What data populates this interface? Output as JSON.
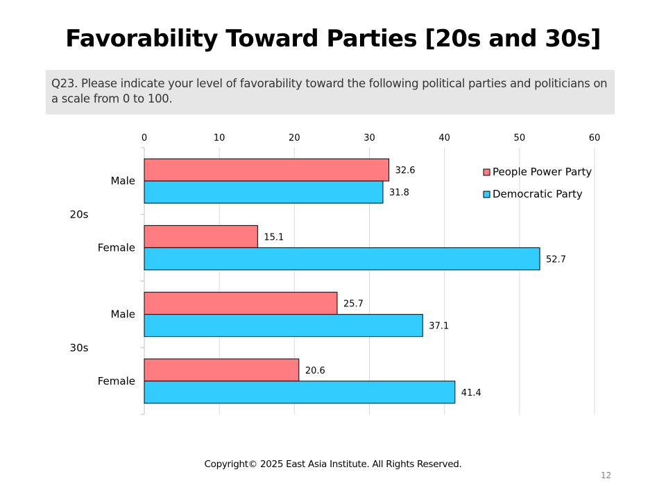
{
  "page": {
    "title": "Favorability Toward Parties [20s and 30s]",
    "question": "Q23. Please indicate your level of favorability toward the following political parties and politicians on a scale from 0 to 100.",
    "copyright": "Copyright© 2025 East Asia Institute. All Rights Reserved.",
    "page_number": "12"
  },
  "chart_data": {
    "type": "bar",
    "orientation": "horizontal",
    "xlim": [
      0,
      60
    ],
    "xticks": [
      0,
      10,
      20,
      30,
      40,
      50,
      60
    ],
    "x_axis_position": "top",
    "grid": true,
    "legend_position": "top-right",
    "groups": [
      {
        "name": "20s",
        "categories": [
          "Male",
          "Female"
        ]
      },
      {
        "name": "30s",
        "categories": [
          "Male",
          "Female"
        ]
      }
    ],
    "series": [
      {
        "name": "People Power Party",
        "color": "#ff7c80",
        "values": [
          32.6,
          15.1,
          25.7,
          20.6
        ]
      },
      {
        "name": "Democratic Party",
        "color": "#33ccff",
        "values": [
          31.8,
          52.7,
          37.1,
          41.4
        ]
      }
    ]
  }
}
